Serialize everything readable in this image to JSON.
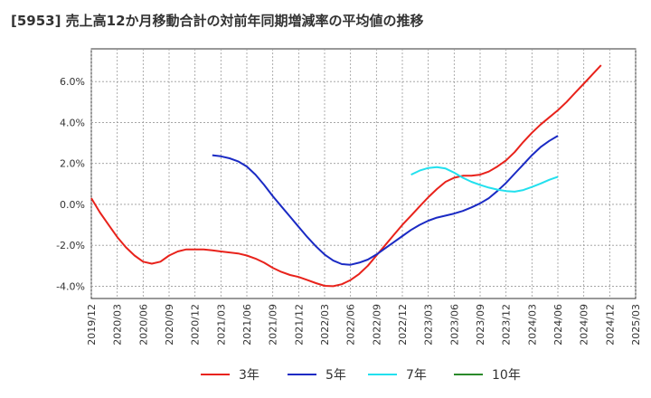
{
  "chart_data": {
    "type": "line",
    "title": "[5953]  売上高12か月移動合計の対前年同期増減率の平均値の推移",
    "xlabel": "",
    "ylabel": "",
    "ylim": [
      -4.6,
      7.6
    ],
    "y_ticks": [
      -4.0,
      -2.0,
      0.0,
      2.0,
      4.0,
      6.0
    ],
    "y_tick_labels": [
      "-4.0%",
      "-2.0%",
      "0.0%",
      "2.0%",
      "4.0%",
      "6.0%"
    ],
    "x_tick_labels": [
      "2019/12",
      "2020/03",
      "2020/06",
      "2020/09",
      "2020/12",
      "2021/03",
      "2021/06",
      "2021/09",
      "2021/12",
      "2022/03",
      "2022/06",
      "2022/09",
      "2022/12",
      "2023/03",
      "2023/06",
      "2023/09",
      "2023/12",
      "2024/03",
      "2024/06",
      "2024/09",
      "2024/12",
      "2025/03"
    ],
    "grid": true,
    "legend_position": "bottom",
    "series": [
      {
        "name": "3年",
        "color": "#e8221b",
        "points": [
          [
            "2019/12",
            0.3
          ],
          [
            "2020/01",
            -0.4
          ],
          [
            "2020/02",
            -1.0
          ],
          [
            "2020/03",
            -1.6
          ],
          [
            "2020/04",
            -2.1
          ],
          [
            "2020/05",
            -2.5
          ],
          [
            "2020/06",
            -2.8
          ],
          [
            "2020/07",
            -2.9
          ],
          [
            "2020/08",
            -2.8
          ],
          [
            "2020/09",
            -2.5
          ],
          [
            "2020/10",
            -2.3
          ],
          [
            "2020/11",
            -2.2
          ],
          [
            "2020/12",
            -2.2
          ],
          [
            "2021/01",
            -2.2
          ],
          [
            "2021/02",
            -2.25
          ],
          [
            "2021/03",
            -2.3
          ],
          [
            "2021/04",
            -2.35
          ],
          [
            "2021/05",
            -2.4
          ],
          [
            "2021/06",
            -2.5
          ],
          [
            "2021/07",
            -2.65
          ],
          [
            "2021/08",
            -2.85
          ],
          [
            "2021/09",
            -3.1
          ],
          [
            "2021/10",
            -3.3
          ],
          [
            "2021/11",
            -3.45
          ],
          [
            "2021/12",
            -3.55
          ],
          [
            "2022/01",
            -3.7
          ],
          [
            "2022/02",
            -3.85
          ],
          [
            "2022/03",
            -3.98
          ],
          [
            "2022/04",
            -4.0
          ],
          [
            "2022/05",
            -3.9
          ],
          [
            "2022/06",
            -3.7
          ],
          [
            "2022/07",
            -3.4
          ],
          [
            "2022/08",
            -3.0
          ],
          [
            "2022/09",
            -2.5
          ],
          [
            "2022/10",
            -2.0
          ],
          [
            "2022/11",
            -1.5
          ],
          [
            "2022/12",
            -1.0
          ],
          [
            "2023/01",
            -0.55
          ],
          [
            "2023/02",
            -0.1
          ],
          [
            "2023/03",
            0.35
          ],
          [
            "2023/04",
            0.75
          ],
          [
            "2023/05",
            1.1
          ],
          [
            "2023/06",
            1.3
          ],
          [
            "2023/07",
            1.4
          ],
          [
            "2023/08",
            1.4
          ],
          [
            "2023/09",
            1.45
          ],
          [
            "2023/10",
            1.6
          ],
          [
            "2023/11",
            1.85
          ],
          [
            "2023/12",
            2.15
          ],
          [
            "2024/01",
            2.55
          ],
          [
            "2024/02",
            3.05
          ],
          [
            "2024/03",
            3.5
          ],
          [
            "2024/04",
            3.9
          ],
          [
            "2024/05",
            4.25
          ],
          [
            "2024/06",
            4.6
          ],
          [
            "2024/07",
            5.0
          ],
          [
            "2024/08",
            5.45
          ],
          [
            "2024/09",
            5.9
          ],
          [
            "2024/10",
            6.35
          ],
          [
            "2024/11",
            6.8
          ]
        ]
      },
      {
        "name": "5年",
        "color": "#1a2ac4",
        "points": [
          [
            "2021/02",
            2.4
          ],
          [
            "2021/03",
            2.35
          ],
          [
            "2021/04",
            2.25
          ],
          [
            "2021/05",
            2.1
          ],
          [
            "2021/06",
            1.85
          ],
          [
            "2021/07",
            1.45
          ],
          [
            "2021/08",
            0.95
          ],
          [
            "2021/09",
            0.4
          ],
          [
            "2021/10",
            -0.1
          ],
          [
            "2021/11",
            -0.6
          ],
          [
            "2021/12",
            -1.1
          ],
          [
            "2022/01",
            -1.6
          ],
          [
            "2022/02",
            -2.05
          ],
          [
            "2022/03",
            -2.45
          ],
          [
            "2022/04",
            -2.75
          ],
          [
            "2022/05",
            -2.92
          ],
          [
            "2022/06",
            -2.95
          ],
          [
            "2022/07",
            -2.85
          ],
          [
            "2022/08",
            -2.7
          ],
          [
            "2022/09",
            -2.45
          ],
          [
            "2022/10",
            -2.15
          ],
          [
            "2022/11",
            -1.85
          ],
          [
            "2022/12",
            -1.55
          ],
          [
            "2023/01",
            -1.25
          ],
          [
            "2023/02",
            -1.0
          ],
          [
            "2023/03",
            -0.8
          ],
          [
            "2023/04",
            -0.65
          ],
          [
            "2023/05",
            -0.55
          ],
          [
            "2023/06",
            -0.45
          ],
          [
            "2023/07",
            -0.32
          ],
          [
            "2023/08",
            -0.15
          ],
          [
            "2023/09",
            0.05
          ],
          [
            "2023/10",
            0.3
          ],
          [
            "2023/11",
            0.65
          ],
          [
            "2023/12",
            1.05
          ],
          [
            "2024/01",
            1.5
          ],
          [
            "2024/02",
            1.95
          ],
          [
            "2024/03",
            2.4
          ],
          [
            "2024/04",
            2.8
          ],
          [
            "2024/05",
            3.1
          ],
          [
            "2024/06",
            3.35
          ]
        ]
      },
      {
        "name": "7年",
        "color": "#22e0ee",
        "points": [
          [
            "2023/01",
            1.45
          ],
          [
            "2023/02",
            1.65
          ],
          [
            "2023/03",
            1.78
          ],
          [
            "2023/04",
            1.82
          ],
          [
            "2023/05",
            1.75
          ],
          [
            "2023/06",
            1.55
          ],
          [
            "2023/07",
            1.3
          ],
          [
            "2023/08",
            1.1
          ],
          [
            "2023/09",
            0.95
          ],
          [
            "2023/10",
            0.82
          ],
          [
            "2023/11",
            0.72
          ],
          [
            "2023/12",
            0.65
          ],
          [
            "2024/01",
            0.62
          ],
          [
            "2024/02",
            0.7
          ],
          [
            "2024/03",
            0.85
          ],
          [
            "2024/04",
            1.02
          ],
          [
            "2024/05",
            1.2
          ],
          [
            "2024/06",
            1.35
          ]
        ]
      },
      {
        "name": "10年",
        "color": "#2a8a2a",
        "points": []
      }
    ]
  }
}
